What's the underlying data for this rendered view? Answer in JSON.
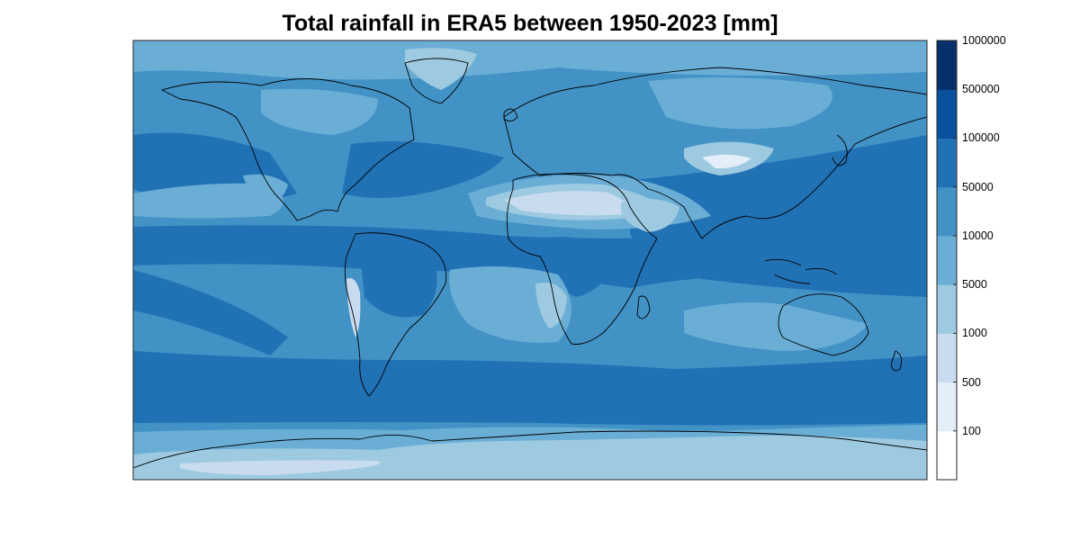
{
  "title": "Total rainfall in ERA5 between 1950-2023 [mm]",
  "colorbar": {
    "labels": [
      "1000000",
      "500000",
      "100000",
      "50000",
      "10000",
      "5000",
      "1000",
      "500",
      "100"
    ],
    "colors": [
      "#ffffff",
      "#e4eef8",
      "#c9dcef",
      "#9ecae1",
      "#6aaed6",
      "#4292c6",
      "#2171b5",
      "#08519c",
      "#08306b"
    ]
  },
  "map": {
    "background_level_color": "#2171b5",
    "coastline_color": "#000000"
  }
}
